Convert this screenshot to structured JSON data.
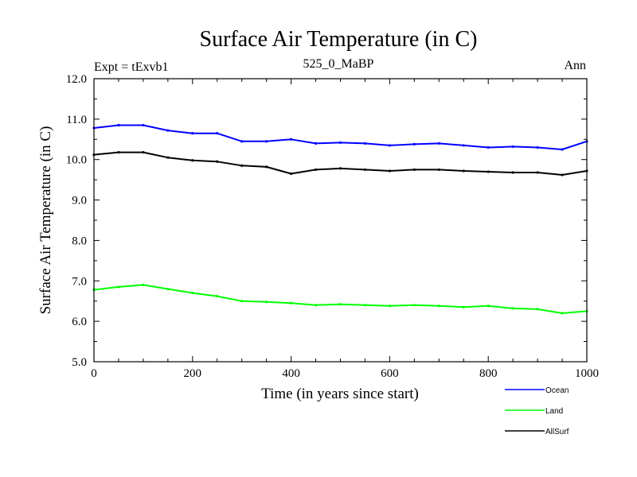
{
  "chart_data": {
    "type": "line",
    "title": "Surface Air Temperature (in C)",
    "subtitle_left": "Expt = tExvb1",
    "subtitle_center": "525_0_MaBP",
    "subtitle_right": "Ann",
    "xlabel": "Time (in years since start)",
    "ylabel": "Surface Air Temperature (in C)",
    "xlim": [
      0,
      1000
    ],
    "ylim": [
      5.0,
      12.0
    ],
    "xticks": [
      0,
      200,
      400,
      600,
      800,
      1000
    ],
    "xtick_labels": [
      "0",
      "200",
      "400",
      "600",
      "800",
      "1000"
    ],
    "yticks": [
      5.0,
      6.0,
      7.0,
      8.0,
      9.0,
      10.0,
      11.0,
      12.0
    ],
    "ytick_labels": [
      "5.0",
      "6.0",
      "7.0",
      "8.0",
      "9.0",
      "10.0",
      "11.0",
      "12.0"
    ],
    "legend_position": "bottom-right, below plot",
    "series": [
      {
        "name": "Ocean",
        "color": "#0000ff",
        "x": [
          0,
          50,
          100,
          150,
          200,
          250,
          300,
          350,
          400,
          450,
          500,
          550,
          600,
          650,
          700,
          750,
          800,
          850,
          900,
          950,
          1000
        ],
        "values": [
          10.78,
          10.85,
          10.85,
          10.72,
          10.65,
          10.65,
          10.45,
          10.45,
          10.5,
          10.4,
          10.42,
          10.4,
          10.35,
          10.38,
          10.4,
          10.35,
          10.3,
          10.32,
          10.3,
          10.25,
          10.45
        ]
      },
      {
        "name": "Land",
        "color": "#00ff00",
        "x": [
          0,
          50,
          100,
          150,
          200,
          250,
          300,
          350,
          400,
          450,
          500,
          550,
          600,
          650,
          700,
          750,
          800,
          850,
          900,
          950,
          1000
        ],
        "values": [
          6.78,
          6.85,
          6.9,
          6.8,
          6.7,
          6.62,
          6.5,
          6.48,
          6.45,
          6.4,
          6.42,
          6.4,
          6.38,
          6.4,
          6.38,
          6.35,
          6.38,
          6.32,
          6.3,
          6.2,
          6.25
        ]
      },
      {
        "name": "AllSurf",
        "color": "#000000",
        "x": [
          0,
          50,
          100,
          150,
          200,
          250,
          300,
          350,
          400,
          450,
          500,
          550,
          600,
          650,
          700,
          750,
          800,
          850,
          900,
          950,
          1000
        ],
        "values": [
          10.12,
          10.18,
          10.18,
          10.05,
          9.98,
          9.95,
          9.85,
          9.82,
          9.65,
          9.75,
          9.78,
          9.75,
          9.72,
          9.75,
          9.75,
          9.72,
          9.7,
          9.68,
          9.68,
          9.62,
          9.72
        ]
      }
    ]
  }
}
